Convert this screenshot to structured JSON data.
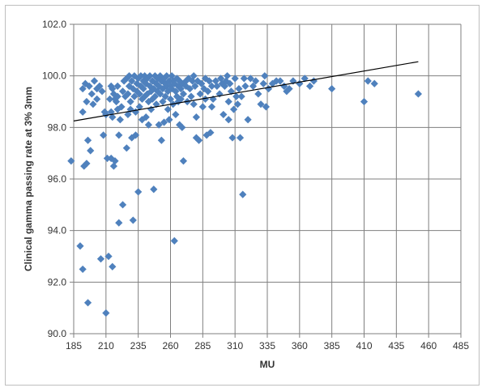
{
  "chart_data": {
    "type": "scatter",
    "title": "",
    "xlabel": "MU",
    "ylabel": "Clinical gamma passing rate at 3%  3mm",
    "xlim": [
      185,
      485
    ],
    "ylim": [
      90.0,
      102.0
    ],
    "x_ticks": [
      "185",
      "210",
      "235",
      "260",
      "285",
      "310",
      "335",
      "360",
      "385",
      "410",
      "435",
      "460",
      "485"
    ],
    "y_ticks": [
      "90.0",
      "92.0",
      "94.0",
      "96.0",
      "98.0",
      "100.0",
      "102.0"
    ],
    "grid": "vertical-and-horizontal",
    "legend": "none",
    "marker": "diamond",
    "colors": {
      "marker": "#4f81bd",
      "trendline": "#000000",
      "grid": "#7f7f7f",
      "axis": "#7f7f7f"
    },
    "trendline": {
      "type": "linear",
      "x": [
        185,
        452
      ],
      "y": [
        98.25,
        100.55
      ]
    },
    "series": [
      {
        "points": [
          [
            183,
            96.7
          ],
          [
            190,
            93.4
          ],
          [
            192,
            92.5
          ],
          [
            193,
            96.5
          ],
          [
            195,
            96.6
          ],
          [
            196,
            91.2
          ],
          [
            196,
            97.5
          ],
          [
            198,
            97.1
          ],
          [
            192,
            99.5
          ],
          [
            194,
            99.7
          ],
          [
            195,
            99.0
          ],
          [
            197,
            99.6
          ],
          [
            199,
            99.3
          ],
          [
            201,
            99.8
          ],
          [
            203,
            99.5
          ],
          [
            203,
            99.1
          ],
          [
            205,
            99.6
          ],
          [
            207,
            99.4
          ],
          [
            192,
            98.6
          ],
          [
            200,
            98.9
          ],
          [
            206,
            92.9
          ],
          [
            208,
            97.7
          ],
          [
            209,
            98.6
          ],
          [
            210,
            98.5
          ],
          [
            210,
            90.8
          ],
          [
            211,
            96.8
          ],
          [
            212,
            93.0
          ],
          [
            214,
            96.8
          ],
          [
            215,
            92.6
          ],
          [
            216,
            96.5
          ],
          [
            217,
            96.7
          ],
          [
            214,
            98.6
          ],
          [
            215,
            98.4
          ],
          [
            213,
            99.1
          ],
          [
            214,
            99.6
          ],
          [
            215,
            99.5
          ],
          [
            216,
            99.3
          ],
          [
            217,
            99.1
          ],
          [
            218,
            99.0
          ],
          [
            219,
            98.7
          ],
          [
            220,
            94.3
          ],
          [
            220,
            97.7
          ],
          [
            221,
            98.3
          ],
          [
            219,
            99.6
          ],
          [
            219,
            99.2
          ],
          [
            222,
            98.8
          ],
          [
            223,
            95.0
          ],
          [
            223,
            99.4
          ],
          [
            224,
            99.8
          ],
          [
            225,
            99.2
          ],
          [
            226,
            97.2
          ],
          [
            226,
            99.9
          ],
          [
            227,
            98.5
          ],
          [
            227,
            99.3
          ],
          [
            228,
            100.0
          ],
          [
            228,
            99.6
          ],
          [
            229,
            99.0
          ],
          [
            229,
            98.7
          ],
          [
            230,
            99.8
          ],
          [
            230,
            97.6
          ],
          [
            231,
            94.4
          ],
          [
            231,
            99.5
          ],
          [
            232,
            100.0
          ],
          [
            232,
            99.2
          ],
          [
            233,
            97.7
          ],
          [
            233,
            98.6
          ],
          [
            234,
            99.7
          ],
          [
            234,
            99.4
          ],
          [
            235,
            95.5
          ],
          [
            235,
            99.9
          ],
          [
            236,
            99.3
          ],
          [
            236,
            98.8
          ],
          [
            237,
            100.0
          ],
          [
            237,
            99.6
          ],
          [
            238,
            99.1
          ],
          [
            238,
            98.3
          ],
          [
            239,
            99.8
          ],
          [
            239,
            99.5
          ],
          [
            240,
            99.2
          ],
          [
            240,
            100.0
          ],
          [
            241,
            99.7
          ],
          [
            241,
            98.4
          ],
          [
            242,
            99.9
          ],
          [
            242,
            99.3
          ],
          [
            243,
            99.0
          ],
          [
            243,
            98.1
          ],
          [
            244,
            99.6
          ],
          [
            244,
            100.0
          ],
          [
            245,
            99.4
          ],
          [
            245,
            98.7
          ],
          [
            246,
            99.8
          ],
          [
            246,
            99.1
          ],
          [
            247,
            99.5
          ],
          [
            247,
            95.6
          ],
          [
            248,
            100.0
          ],
          [
            248,
            99.2
          ],
          [
            249,
            99.7
          ],
          [
            249,
            98.9
          ],
          [
            250,
            99.9
          ],
          [
            250,
            99.4
          ],
          [
            251,
            99.6
          ],
          [
            251,
            98.1
          ],
          [
            252,
            100.0
          ],
          [
            252,
            99.3
          ],
          [
            253,
            99.8
          ],
          [
            253,
            97.5
          ],
          [
            254,
            99.5
          ],
          [
            254,
            99.0
          ],
          [
            255,
            99.9
          ],
          [
            255,
            98.2
          ],
          [
            256,
            99.7
          ],
          [
            256,
            99.2
          ],
          [
            257,
            100.0
          ],
          [
            257,
            99.6
          ],
          [
            258,
            99.4
          ],
          [
            258,
            98.7
          ],
          [
            259,
            99.8
          ],
          [
            259,
            98.3
          ],
          [
            260,
            99.6
          ],
          [
            260,
            99.1
          ],
          [
            261,
            100.0
          ],
          [
            261,
            99.5
          ],
          [
            262,
            99.8
          ],
          [
            262,
            98.9
          ],
          [
            263,
            93.6
          ],
          [
            263,
            99.7
          ],
          [
            264,
            99.4
          ],
          [
            264,
            98.5
          ],
          [
            265,
            99.9
          ],
          [
            265,
            99.2
          ],
          [
            266,
            99.6
          ],
          [
            266,
            99.0
          ],
          [
            267,
            99.8
          ],
          [
            267,
            98.1
          ],
          [
            268,
            99.5
          ],
          [
            268,
            99.1
          ],
          [
            269,
            99.7
          ],
          [
            269,
            98.0
          ],
          [
            270,
            99.3
          ],
          [
            270,
            96.7
          ],
          [
            272,
            99.8
          ],
          [
            272,
            99.6
          ],
          [
            273,
            99.0
          ],
          [
            274,
            99.9
          ],
          [
            275,
            99.5
          ],
          [
            276,
            99.2
          ],
          [
            277,
            99.8
          ],
          [
            278,
            100.0
          ],
          [
            278,
            98.9
          ],
          [
            279,
            99.6
          ],
          [
            280,
            98.4
          ],
          [
            280,
            97.6
          ],
          [
            281,
            99.8
          ],
          [
            282,
            97.5
          ],
          [
            283,
            99.3
          ],
          [
            284,
            99.7
          ],
          [
            285,
            98.8
          ],
          [
            286,
            99.5
          ],
          [
            287,
            99.9
          ],
          [
            287,
            99.1
          ],
          [
            288,
            97.7
          ],
          [
            289,
            99.4
          ],
          [
            290,
            99.8
          ],
          [
            291,
            97.8
          ],
          [
            292,
            98.8
          ],
          [
            292,
            99.6
          ],
          [
            293,
            99.1
          ],
          [
            295,
            99.8
          ],
          [
            296,
            99.6
          ],
          [
            298,
            99.3
          ],
          [
            299,
            99.9
          ],
          [
            300,
            99.7
          ],
          [
            301,
            98.5
          ],
          [
            302,
            99.6
          ],
          [
            303,
            99.8
          ],
          [
            304,
            100.0
          ],
          [
            305,
            99.0
          ],
          [
            305,
            98.3
          ],
          [
            306,
            99.7
          ],
          [
            307,
            99.4
          ],
          [
            308,
            97.6
          ],
          [
            309,
            98.7
          ],
          [
            310,
            99.9
          ],
          [
            311,
            99.2
          ],
          [
            312,
            98.9
          ],
          [
            313,
            99.5
          ],
          [
            314,
            97.6
          ],
          [
            315,
            99.2
          ],
          [
            316,
            95.4
          ],
          [
            317,
            99.9
          ],
          [
            318,
            99.6
          ],
          [
            320,
            98.3
          ],
          [
            322,
            99.9
          ],
          [
            324,
            99.6
          ],
          [
            326,
            99.8
          ],
          [
            328,
            99.3
          ],
          [
            330,
            98.9
          ],
          [
            332,
            99.7
          ],
          [
            333,
            100.0
          ],
          [
            334,
            98.8
          ],
          [
            336,
            99.5
          ],
          [
            339,
            99.7
          ],
          [
            342,
            99.8
          ],
          [
            345,
            99.8
          ],
          [
            348,
            99.6
          ],
          [
            350,
            99.4
          ],
          [
            352,
            99.5
          ],
          [
            355,
            99.8
          ],
          [
            360,
            99.7
          ],
          [
            364,
            99.9
          ],
          [
            368,
            99.6
          ],
          [
            371,
            99.8
          ],
          [
            385,
            99.5
          ],
          [
            410,
            99.0
          ],
          [
            413,
            99.8
          ],
          [
            418,
            99.7
          ],
          [
            452,
            99.3
          ]
        ]
      }
    ]
  }
}
